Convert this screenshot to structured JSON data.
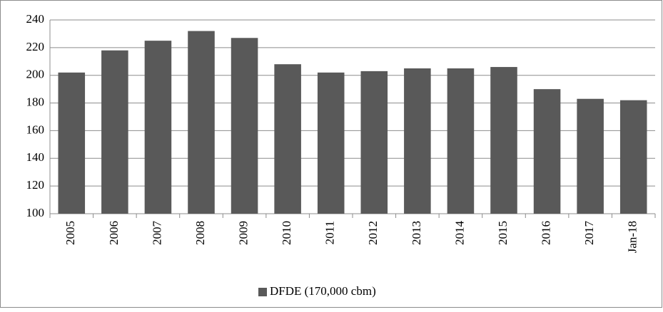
{
  "chart_data": {
    "type": "bar",
    "categories": [
      "2005",
      "2006",
      "2007",
      "2008",
      "2009",
      "2010",
      "2011",
      "2012",
      "2013",
      "2014",
      "2015",
      "2016",
      "2017",
      "Jan-18"
    ],
    "series": [
      {
        "name": "DFDE (170,000 cbm)",
        "color": "#595959",
        "values": [
          202,
          218,
          225,
          232,
          227,
          208,
          202,
          203,
          205,
          205,
          206,
          190,
          183,
          182
        ]
      }
    ],
    "ylim": [
      100,
      240
    ],
    "yticks": [
      100,
      120,
      140,
      160,
      180,
      200,
      220,
      240
    ],
    "grid": true,
    "legend": "bottom"
  }
}
